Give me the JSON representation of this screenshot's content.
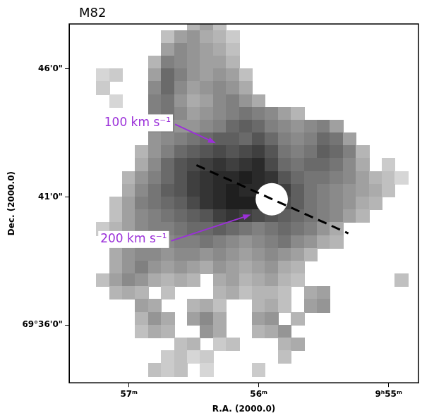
{
  "chart_data": {
    "type": "heatmap",
    "title": "M82",
    "x_label": "R.A. (2000.0)",
    "y_label": "Dec. (2000.0)",
    "xlim": [
      57.46,
      54.77
    ],
    "ylim": [
      33.75,
      47.75
    ],
    "xticks": [
      {
        "value": 57,
        "label": "57ᵐ"
      },
      {
        "value": 56,
        "label": "56ᵐ"
      },
      {
        "value": 55,
        "label": "9ʰ55ᵐ"
      }
    ],
    "yticks": [
      {
        "value": 36,
        "label": "69°36'0\""
      },
      {
        "value": 41,
        "label": "41'0\""
      },
      {
        "value": 46,
        "label": "46'0\""
      }
    ],
    "grid": false,
    "legend": false,
    "color_range": [
      50,
      250
    ],
    "cells": {
      "x": [
        57.3,
        57.2,
        57.1,
        57.0,
        56.9,
        56.8,
        56.7,
        56.6,
        56.5,
        56.4,
        56.3,
        56.2,
        56.1,
        56.0,
        55.9,
        55.8,
        55.7,
        55.6,
        55.5,
        55.4,
        55.3,
        55.2,
        55.1,
        55.0,
        54.9
      ],
      "y": [
        47.75,
        47.25,
        46.75,
        46.25,
        45.75,
        45.25,
        44.75,
        44.25,
        43.75,
        43.25,
        42.75,
        42.25,
        41.75,
        41.25,
        40.75,
        40.25,
        39.75,
        39.25,
        38.75,
        38.25,
        37.75,
        37.25,
        36.75,
        36.25,
        35.75,
        35.25,
        34.75,
        34.25
      ],
      "values": [
        [
          null,
          null,
          null,
          null,
          null,
          null,
          null,
          null,
          100,
          120,
          90,
          null,
          null,
          null,
          null,
          null,
          null,
          null,
          null,
          null,
          null,
          null,
          null,
          null,
          null
        ],
        [
          null,
          null,
          null,
          null,
          null,
          null,
          90,
          120,
          130,
          110,
          100,
          80,
          null,
          null,
          null,
          null,
          null,
          null,
          null,
          null,
          null,
          null,
          null,
          null,
          null
        ],
        [
          null,
          null,
          null,
          null,
          null,
          null,
          120,
          140,
          130,
          120,
          110,
          90,
          null,
          null,
          null,
          null,
          null,
          null,
          null,
          null,
          null,
          null,
          null,
          null,
          null
        ],
        [
          null,
          null,
          null,
          null,
          null,
          100,
          150,
          140,
          130,
          120,
          120,
          100,
          null,
          null,
          null,
          null,
          null,
          null,
          null,
          null,
          null,
          null,
          null,
          null,
          null
        ],
        [
          null,
          70,
          80,
          null,
          null,
          120,
          170,
          150,
          130,
          120,
          130,
          120,
          90,
          null,
          null,
          null,
          null,
          null,
          null,
          null,
          null,
          null,
          null,
          null,
          null
        ],
        [
          null,
          80,
          null,
          null,
          null,
          140,
          170,
          140,
          120,
          130,
          140,
          130,
          110,
          null,
          null,
          null,
          null,
          null,
          null,
          null,
          null,
          null,
          null,
          null,
          null
        ],
        [
          null,
          null,
          70,
          null,
          null,
          150,
          160,
          130,
          110,
          120,
          140,
          150,
          130,
          110,
          null,
          null,
          null,
          null,
          null,
          null,
          null,
          null,
          null,
          null,
          null
        ],
        [
          null,
          null,
          null,
          null,
          null,
          150,
          160,
          140,
          120,
          130,
          140,
          150,
          160,
          150,
          140,
          120,
          100,
          null,
          null,
          null,
          null,
          null,
          null,
          null,
          null
        ],
        [
          null,
          null,
          null,
          null,
          null,
          140,
          150,
          130,
          130,
          140,
          150,
          170,
          180,
          170,
          150,
          140,
          130,
          140,
          150,
          120,
          null,
          null,
          null,
          null,
          null
        ],
        [
          null,
          null,
          null,
          null,
          null,
          130,
          140,
          150,
          160,
          170,
          180,
          180,
          170,
          190,
          170,
          150,
          140,
          150,
          170,
          160,
          120,
          null,
          null,
          null,
          null
        ],
        [
          null,
          null,
          null,
          null,
          100,
          130,
          150,
          170,
          180,
          190,
          200,
          190,
          200,
          210,
          190,
          160,
          150,
          160,
          180,
          170,
          150,
          100,
          null,
          null,
          null
        ],
        [
          null,
          null,
          null,
          null,
          110,
          140,
          170,
          190,
          200,
          210,
          220,
          210,
          220,
          230,
          200,
          170,
          160,
          170,
          170,
          160,
          140,
          110,
          null,
          80,
          null
        ],
        [
          null,
          null,
          null,
          100,
          130,
          150,
          170,
          190,
          210,
          220,
          230,
          230,
          240,
          230,
          220,
          190,
          170,
          160,
          160,
          150,
          140,
          120,
          100,
          90,
          70
        ],
        [
          null,
          null,
          null,
          110,
          140,
          160,
          180,
          190,
          210,
          220,
          230,
          240,
          230,
          230,
          230,
          210,
          180,
          160,
          150,
          140,
          130,
          120,
          110,
          90,
          null
        ],
        [
          null,
          null,
          90,
          120,
          150,
          160,
          170,
          180,
          200,
          220,
          230,
          240,
          240,
          240,
          220,
          200,
          180,
          160,
          150,
          140,
          130,
          110,
          100,
          null,
          null
        ],
        [
          null,
          null,
          90,
          120,
          140,
          150,
          160,
          170,
          180,
          190,
          210,
          220,
          210,
          200,
          190,
          180,
          170,
          160,
          150,
          140,
          120,
          100,
          null,
          null,
          null
        ],
        [
          null,
          80,
          100,
          120,
          140,
          150,
          150,
          160,
          170,
          170,
          180,
          170,
          160,
          150,
          160,
          170,
          160,
          150,
          130,
          110,
          null,
          null,
          null,
          null,
          null
        ],
        [
          null,
          null,
          100,
          110,
          130,
          140,
          140,
          150,
          150,
          160,
          150,
          140,
          130,
          140,
          150,
          160,
          140,
          130,
          110,
          100,
          null,
          null,
          null,
          null,
          null
        ],
        [
          null,
          null,
          110,
          130,
          140,
          140,
          130,
          140,
          140,
          130,
          140,
          130,
          120,
          130,
          140,
          130,
          120,
          100,
          null,
          null,
          null,
          null,
          null,
          null,
          null
        ],
        [
          null,
          null,
          110,
          130,
          150,
          130,
          120,
          130,
          120,
          110,
          130,
          120,
          110,
          120,
          130,
          110,
          100,
          null,
          null,
          null,
          null,
          null,
          null,
          null,
          null
        ],
        [
          null,
          90,
          120,
          140,
          130,
          110,
          100,
          110,
          100,
          null,
          110,
          120,
          100,
          110,
          120,
          100,
          90,
          null,
          null,
          null,
          null,
          null,
          null,
          null,
          90
        ],
        [
          null,
          null,
          100,
          110,
          100,
          null,
          90,
          null,
          null,
          null,
          100,
          110,
          90,
          100,
          100,
          90,
          null,
          110,
          120,
          null,
          null,
          null,
          null,
          null,
          null
        ],
        [
          null,
          null,
          null,
          null,
          120,
          110,
          null,
          null,
          100,
          110,
          90,
          null,
          null,
          100,
          110,
          90,
          null,
          120,
          130,
          null,
          null,
          null,
          null,
          null,
          null
        ],
        [
          null,
          null,
          null,
          null,
          100,
          130,
          110,
          null,
          120,
          140,
          110,
          null,
          null,
          120,
          130,
          null,
          100,
          null,
          null,
          null,
          null,
          null,
          null,
          null,
          null
        ],
        [
          null,
          null,
          null,
          null,
          90,
          110,
          100,
          null,
          null,
          130,
          110,
          null,
          null,
          100,
          110,
          130,
          null,
          null,
          null,
          null,
          null,
          null,
          null,
          null,
          null
        ],
        [
          null,
          null,
          null,
          null,
          null,
          null,
          null,
          90,
          100,
          null,
          80,
          90,
          null,
          null,
          null,
          100,
          110,
          null,
          null,
          null,
          null,
          null,
          null,
          null,
          null
        ],
        [
          null,
          null,
          null,
          null,
          null,
          null,
          80,
          90,
          70,
          80,
          null,
          null,
          null,
          null,
          null,
          90,
          null,
          null,
          null,
          null,
          null,
          null,
          null,
          null,
          null
        ],
        [
          null,
          null,
          null,
          null,
          null,
          90,
          80,
          90,
          null,
          70,
          null,
          null,
          null,
          80,
          null,
          null,
          null,
          null,
          null,
          null,
          null,
          null,
          null,
          null,
          null
        ]
      ]
    },
    "mask": {
      "x": 55.9,
      "y": 40.91,
      "radius": 0.63,
      "color": "#ffffff"
    },
    "lines": [
      {
        "x": [
          56.48,
          55.31
        ],
        "y": [
          42.24,
          39.58
        ],
        "color": "#000000",
        "line_style": "dashed"
      }
    ],
    "annotations": [
      {
        "text": "100 km s⁻¹",
        "x": 57.19,
        "y": 43.89,
        "arrow_to": [
          56.33,
          43.1
        ],
        "color": "#9b30d9"
      },
      {
        "text": "200 km s⁻¹",
        "x": 57.22,
        "y": 39.34,
        "arrow_to": [
          56.06,
          40.31
        ],
        "color": "#9b30d9"
      }
    ]
  }
}
